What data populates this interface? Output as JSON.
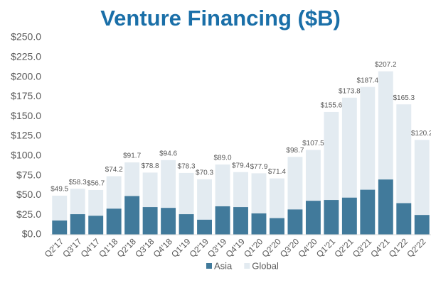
{
  "chart_data": {
    "type": "bar",
    "title": "Venture Financing ($B)",
    "categories": [
      "Q2'17",
      "Q3'17",
      "Q4'17",
      "Q1'18",
      "Q2'18",
      "Q3'18",
      "Q4'18",
      "Q1'19",
      "Q2'19",
      "Q3'19",
      "Q4'19",
      "Q1'20",
      "Q2'20",
      "Q3'20",
      "Q4'20",
      "Q1'21",
      "Q2'21",
      "Q3'21",
      "Q4'21",
      "Q1'22",
      "Q2'22"
    ],
    "series": [
      {
        "name": "Global",
        "color": "#e3ebf1",
        "values": [
          49.5,
          58.3,
          56.7,
          74.2,
          91.7,
          78.8,
          94.6,
          78.3,
          70.3,
          89.0,
          79.4,
          77.9,
          71.4,
          98.7,
          107.5,
          155.6,
          173.8,
          187.4,
          207.2,
          165.3,
          120.2
        ],
        "value_labels": [
          "$49.5",
          "$58.3",
          "$56.7",
          "$74.2",
          "$91.7",
          "$78.8",
          "$94.6",
          "$78.3",
          "$70.3",
          "$89.0",
          "$79.4",
          "$77.9",
          "$71.4",
          "$98.7",
          "$107.5",
          "$155.6",
          "$173.8",
          "$187.4",
          "$207.2",
          "$165.3",
          "$120.2"
        ]
      },
      {
        "name": "Asia",
        "color": "#417a9b",
        "values": [
          18,
          26,
          24,
          33,
          49,
          35,
          34,
          26,
          19,
          36,
          35,
          27,
          21,
          32,
          43,
          44,
          47,
          57,
          70,
          40,
          25
        ]
      }
    ],
    "ylim": [
      0,
      250
    ],
    "yticks": [
      {
        "value": 0,
        "label": "$0.0"
      },
      {
        "value": 25,
        "label": "$25.0"
      },
      {
        "value": 50,
        "label": "$50.0"
      },
      {
        "value": 75,
        "label": "$75.0"
      },
      {
        "value": 100,
        "label": "$100.0"
      },
      {
        "value": 125,
        "label": "$125.0"
      },
      {
        "value": 150,
        "label": "$150.0"
      },
      {
        "value": 175,
        "label": "$175.0"
      },
      {
        "value": 200,
        "label": "$200.0"
      },
      {
        "value": 225,
        "label": "$225.0"
      },
      {
        "value": 250,
        "label": "$250.0"
      }
    ],
    "legend": "bottom"
  }
}
